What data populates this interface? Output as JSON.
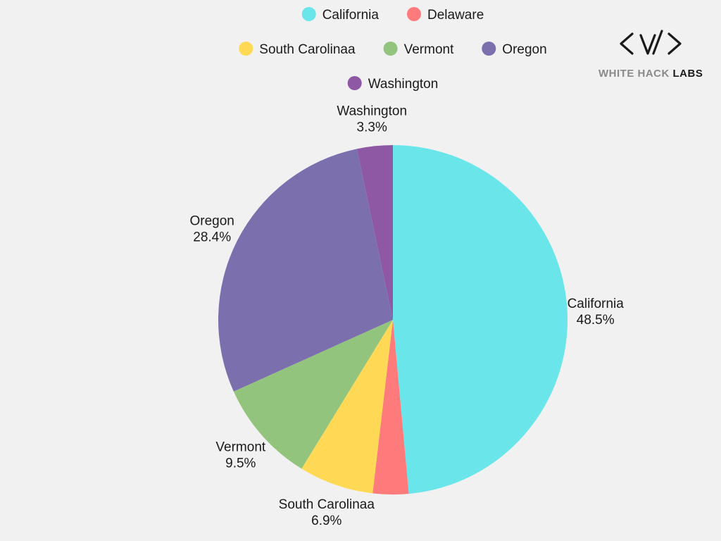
{
  "chart_data": {
    "type": "pie",
    "title": "",
    "categories": [
      "California",
      "Delaware",
      "South Carolinaa",
      "Vermont",
      "Oregon",
      "Washington"
    ],
    "values": [
      48.5,
      3.3,
      6.9,
      9.5,
      28.4,
      3.3
    ],
    "value_labels": [
      "48.5%",
      "",
      "6.9%",
      "9.5%",
      "28.4%",
      "3.3%"
    ],
    "colors": [
      "#6ae5e9",
      "#ff7a7b",
      "#ffd955",
      "#93c47d",
      "#7b6fae",
      "#8e58a4"
    ],
    "start_angle": "top",
    "direction": "clockwise",
    "legend": {
      "placement": "top-center",
      "rows": [
        [
          "California",
          "Delaware"
        ],
        [
          "South Carolinaa",
          "Vermont",
          "Oregon"
        ],
        [
          "Washington"
        ]
      ]
    }
  },
  "branding": {
    "logo_text_main": "WHITE HACK ",
    "logo_text_accent": "LABS",
    "logo_icon": "code-brackets-icon"
  }
}
